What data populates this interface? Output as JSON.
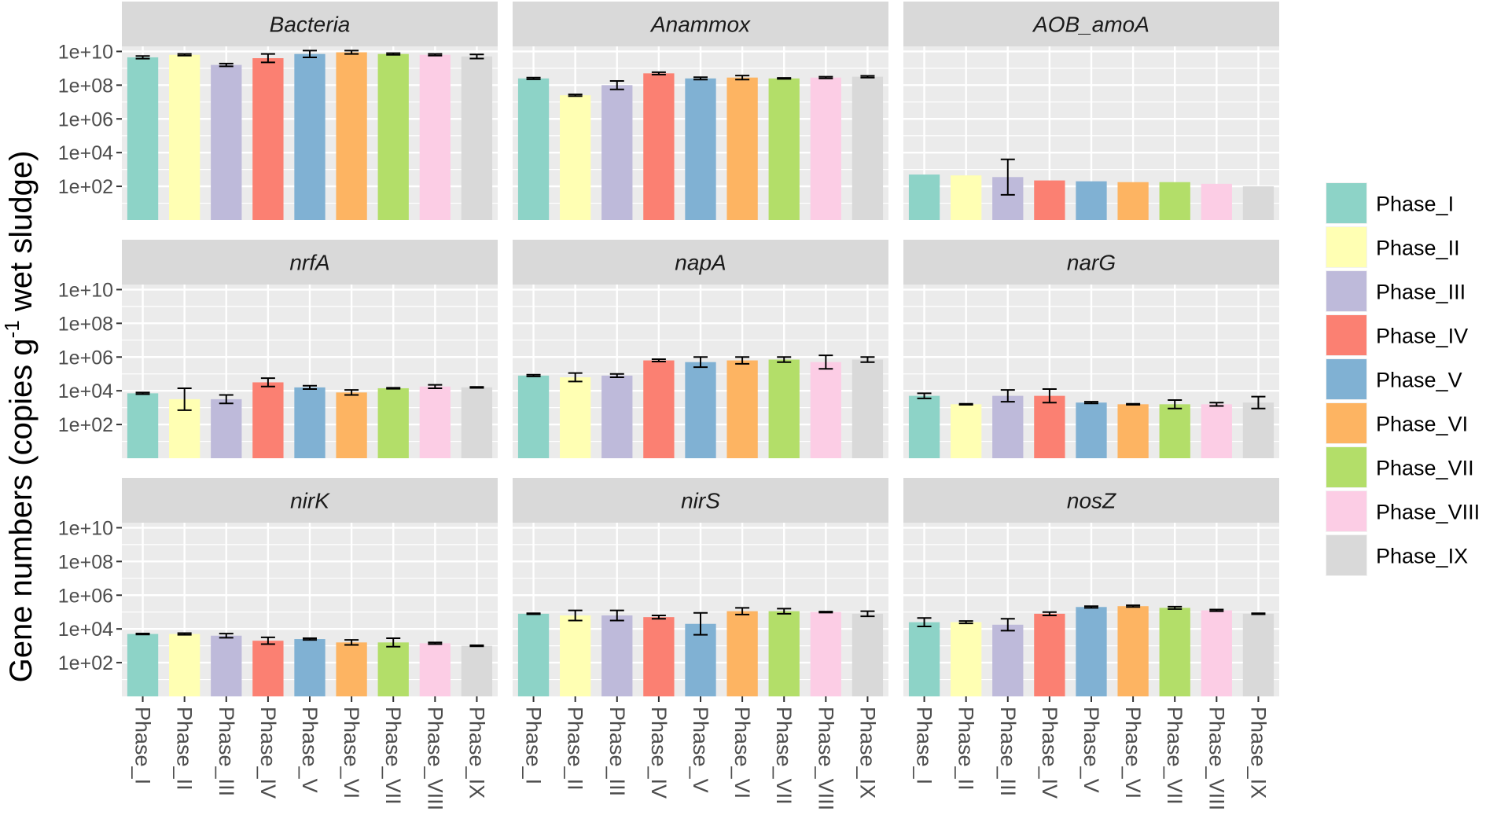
{
  "figure": {
    "ylabel_main": "Gene numbers (copies g",
    "ylabel_sup": "-1",
    "ylabel_rest": " wet sludge)"
  },
  "chart_data": {
    "type": "bar",
    "scale": "log10",
    "ylabel": "Gene numbers (copies g-1 wet sludge)",
    "ylim": [
      1,
      10000000000
    ],
    "yticks": [
      "1e+02",
      "1e+04",
      "1e+06",
      "1e+08",
      "1e+10"
    ],
    "ytick_values": [
      100,
      10000,
      1000000,
      100000000,
      10000000000
    ],
    "categories": [
      "Phase_I",
      "Phase_II",
      "Phase_III",
      "Phase_IV",
      "Phase_V",
      "Phase_VI",
      "Phase_VII",
      "Phase_VIII",
      "Phase_IX"
    ],
    "colors": [
      "#8dd3c7",
      "#ffffb3",
      "#bebada",
      "#fb8072",
      "#80b1d3",
      "#fdb462",
      "#b3de69",
      "#fccde5",
      "#d9d9d9"
    ],
    "legend": {
      "position": "right",
      "entries": [
        "Phase_I",
        "Phase_II",
        "Phase_III",
        "Phase_IV",
        "Phase_V",
        "Phase_VI",
        "Phase_VII",
        "Phase_VIII",
        "Phase_IX"
      ]
    },
    "panels": [
      {
        "title": "Bacteria",
        "log_values": [
          9.65,
          9.8,
          9.2,
          9.6,
          9.85,
          9.95,
          9.85,
          9.8,
          9.7
        ],
        "log_err": [
          0.08,
          0.05,
          0.08,
          0.25,
          0.2,
          0.1,
          0.05,
          0.05,
          0.12
        ]
      },
      {
        "title": "Anammox",
        "log_values": [
          8.4,
          7.4,
          8.0,
          8.7,
          8.4,
          8.45,
          8.4,
          8.45,
          8.5
        ],
        "log_err": [
          0.05,
          0.05,
          0.25,
          0.07,
          0.07,
          0.12,
          0.03,
          0.05,
          0.05
        ]
      },
      {
        "title": "AOB_amoA",
        "log_values": [
          2.7,
          2.65,
          2.55,
          2.35,
          2.3,
          2.25,
          2.25,
          2.15,
          2.0
        ],
        "log_err": [
          0,
          0,
          1.05,
          0,
          0,
          0,
          0,
          0,
          0
        ]
      },
      {
        "title": "nrfA",
        "log_values": [
          3.85,
          3.5,
          3.5,
          4.5,
          4.2,
          3.9,
          4.15,
          4.25,
          4.2
        ],
        "log_err": [
          0.05,
          0.65,
          0.25,
          0.25,
          0.1,
          0.15,
          0.03,
          0.1,
          0.03
        ]
      },
      {
        "title": "napA",
        "log_values": [
          4.9,
          4.8,
          4.9,
          5.8,
          5.7,
          5.8,
          5.85,
          5.7,
          5.85
        ],
        "log_err": [
          0.05,
          0.25,
          0.1,
          0.07,
          0.3,
          0.2,
          0.15,
          0.4,
          0.15
        ]
      },
      {
        "title": "narG",
        "log_values": [
          3.7,
          3.2,
          3.7,
          3.7,
          3.3,
          3.2,
          3.2,
          3.2,
          3.3
        ],
        "log_err": [
          0.15,
          0.03,
          0.35,
          0.4,
          0.05,
          0.03,
          0.25,
          0.1,
          0.35
        ]
      },
      {
        "title": "nirK",
        "log_values": [
          3.7,
          3.7,
          3.6,
          3.3,
          3.4,
          3.2,
          3.2,
          3.15,
          3.0
        ],
        "log_err": [
          0.03,
          0.05,
          0.12,
          0.2,
          0.05,
          0.15,
          0.25,
          0.05,
          0.03
        ]
      },
      {
        "title": "nirS",
        "log_values": [
          4.9,
          4.8,
          4.8,
          4.7,
          4.3,
          5.05,
          5.05,
          5.0,
          4.9
        ],
        "log_err": [
          0.03,
          0.3,
          0.3,
          0.1,
          0.65,
          0.2,
          0.15,
          0.03,
          0.15
        ]
      },
      {
        "title": "nosZ",
        "log_values": [
          4.4,
          4.4,
          4.25,
          4.9,
          5.3,
          5.35,
          5.25,
          5.1,
          4.9
        ],
        "log_err": [
          0.25,
          0.07,
          0.35,
          0.1,
          0.05,
          0.05,
          0.07,
          0.05,
          0.03
        ]
      }
    ]
  }
}
